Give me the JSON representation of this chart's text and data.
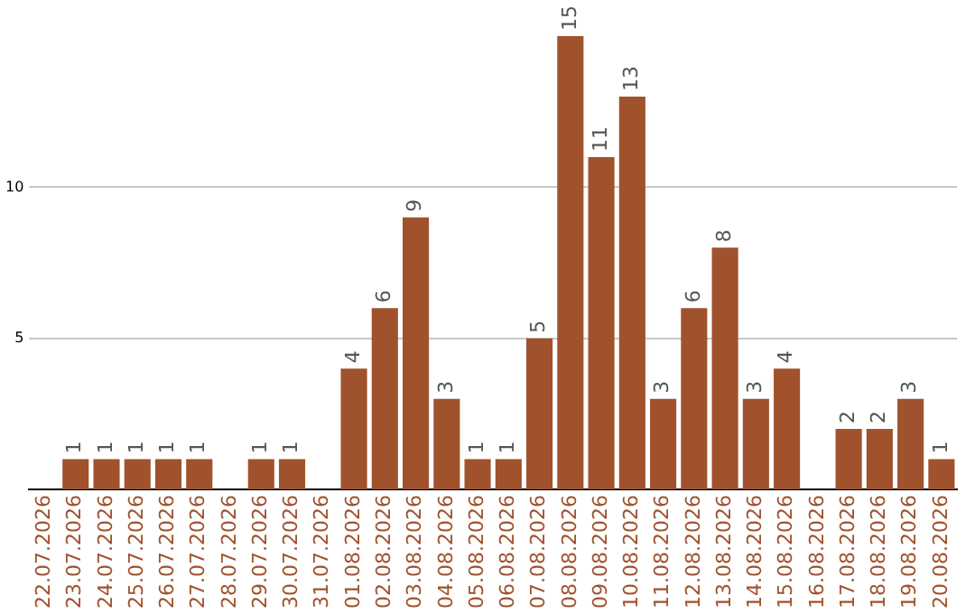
{
  "chart_data": {
    "type": "bar",
    "categories": [
      "22.07.2026",
      "23.07.2026",
      "24.07.2026",
      "25.07.2026",
      "26.07.2026",
      "27.07.2026",
      "28.07.2026",
      "29.07.2026",
      "30.07.2026",
      "31.07.2026",
      "01.08.2026",
      "02.08.2026",
      "03.08.2026",
      "04.08.2026",
      "05.08.2026",
      "06.08.2026",
      "07.08.2026",
      "08.08.2026",
      "09.08.2026",
      "10.08.2026",
      "11.08.2026",
      "12.08.2026",
      "13.08.2026",
      "14.08.2026",
      "15.08.2026",
      "16.08.2026",
      "17.08.2026",
      "18.08.2026",
      "19.08.2026",
      "20.08.2026"
    ],
    "values": [
      0,
      1,
      1,
      1,
      1,
      1,
      0,
      1,
      1,
      0,
      4,
      6,
      9,
      3,
      1,
      1,
      5,
      15,
      11,
      13,
      3,
      6,
      8,
      3,
      4,
      0,
      2,
      2,
      3,
      1
    ],
    "value_labels": [
      null,
      "1",
      "1",
      "1",
      "1",
      "1",
      null,
      "1",
      "1",
      null,
      "4",
      "6",
      "9",
      "3",
      "1",
      "1",
      "5",
      "15",
      "11",
      "13",
      "3",
      "6",
      "8",
      "3",
      "4",
      null,
      "2",
      "2",
      "3",
      "1"
    ],
    "color": "#a0522d",
    "ylim": [
      0,
      15
    ],
    "yticks": [
      5,
      10
    ],
    "grid": "y",
    "legend": false
  }
}
